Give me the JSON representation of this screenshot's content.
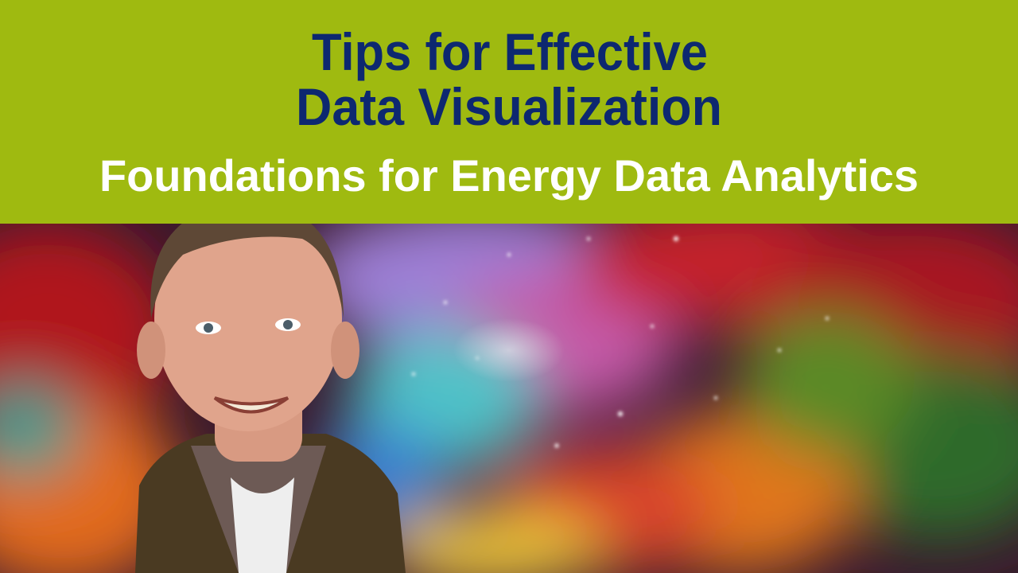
{
  "header": {
    "title_lines": [
      "Tips for Effective",
      "Data Visualization"
    ],
    "subtitle": "Foundations for Energy Data Analytics"
  }
}
